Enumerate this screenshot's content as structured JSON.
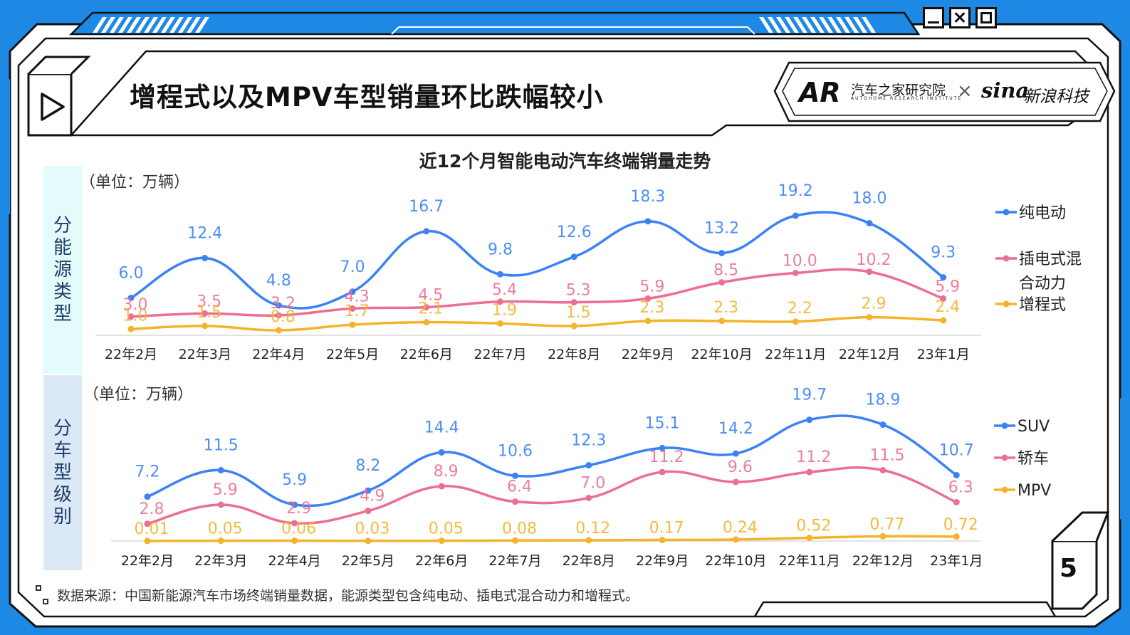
{
  "header": {
    "title": "增程式以及MPV车型销量环比跌幅较小",
    "logo_ar_cn": "汽车之家研究院",
    "logo_ar_en": "AUTOHOME RESEARCH INSTITUTE",
    "logo_ar_mark": "AR",
    "logo_cross": "×",
    "logo_sina": "sina",
    "logo_sina_cn": "新浪科技"
  },
  "window_controls": [
    "minimize-icon",
    "close-icon",
    "maximize-icon"
  ],
  "play_icon": "play-icon",
  "chart_title": "近12个月智能电动汽车终端销量走势",
  "unit_label": "（单位：万辆）",
  "side_label_top": "分能源类型",
  "side_label_bottom": "分车型级别",
  "source": "数据来源：中国新能源汽车市场终端销量数据，能源类型包含纯电动、插电式混合动力和增程式。",
  "page_number": "5",
  "colors": {
    "frame_blue": "#1e88e5",
    "blue": "#3b82f6",
    "pink": "#ec6f93",
    "orange": "#f5b32b",
    "side_top_bg": "#e4fbfb",
    "side_bottom_bg": "#dbe9f7"
  },
  "chart_data": [
    {
      "type": "line",
      "name": "分能源类型",
      "categories": [
        "22年2月",
        "22年3月",
        "22年4月",
        "22年5月",
        "22年6月",
        "22年7月",
        "22年8月",
        "22年9月",
        "22年10月",
        "22年11月",
        "22年12月",
        "23年1月"
      ],
      "series": [
        {
          "name": "纯电动",
          "values": [
            6.0,
            12.4,
            4.8,
            7.0,
            16.7,
            9.8,
            12.6,
            18.3,
            13.2,
            19.2,
            18.0,
            9.3
          ],
          "labels": [
            "6.0",
            "12.4",
            "4.8",
            "7.0",
            "16.7",
            "9.8",
            "12.6",
            "18.3",
            "13.2",
            "19.2",
            "18.0",
            "9.3"
          ]
        },
        {
          "name": "插电式混合动力",
          "values": [
            3.0,
            3.5,
            3.2,
            4.3,
            4.5,
            5.4,
            5.3,
            5.9,
            8.5,
            10.0,
            10.2,
            5.9
          ],
          "labels": [
            "3.0",
            "3.5",
            "3.2",
            "4.3",
            "4.5",
            "5.4",
            "5.3",
            "5.9",
            "8.5",
            "10.0",
            "10.2",
            "5.9"
          ]
        },
        {
          "name": "增程式",
          "values": [
            1.0,
            1.5,
            0.8,
            1.7,
            2.1,
            1.9,
            1.5,
            2.3,
            2.3,
            2.2,
            2.9,
            2.4
          ],
          "labels": [
            "1.0",
            "1.5",
            "0.8",
            "1.7",
            "2.1",
            "1.9",
            "1.5",
            "2.3",
            "2.3",
            "2.2",
            "2.9",
            "2.4"
          ]
        }
      ],
      "legend": [
        "纯电动",
        "插电式混",
        "合动力",
        "增程式"
      ],
      "legend_position": "right",
      "ylabel": "（单位：万辆）",
      "grid": false
    },
    {
      "type": "line",
      "name": "分车型级别",
      "categories": [
        "22年2月",
        "22年3月",
        "22年4月",
        "22年5月",
        "22年6月",
        "22年7月",
        "22年8月",
        "22年9月",
        "22年10月",
        "22年11月",
        "22年12月",
        "23年1月"
      ],
      "series": [
        {
          "name": "SUV",
          "values": [
            7.2,
            11.5,
            5.9,
            8.2,
            14.4,
            10.6,
            12.3,
            15.1,
            14.2,
            19.7,
            18.9,
            10.7
          ],
          "labels": [
            "7.2",
            "11.5",
            "5.9",
            "8.2",
            "14.4",
            "10.6",
            "12.3",
            "15.1",
            "14.2",
            "19.7",
            "18.9",
            "10.7"
          ]
        },
        {
          "name": "轿车",
          "values": [
            2.8,
            5.9,
            2.9,
            4.9,
            8.9,
            6.4,
            7.0,
            11.2,
            9.6,
            11.2,
            11.5,
            6.3
          ],
          "labels": [
            "2.8",
            "5.9",
            "2.9",
            "4.9",
            "8.9",
            "6.4",
            "7.0",
            "11.2",
            "9.6",
            "11.2",
            "11.5",
            "6.3"
          ]
        },
        {
          "name": "MPV",
          "values": [
            0.01,
            0.05,
            0.06,
            0.03,
            0.05,
            0.08,
            0.12,
            0.17,
            0.24,
            0.52,
            0.77,
            0.72
          ],
          "labels": [
            "0.01",
            "0.05",
            "0.06",
            "0.03",
            "0.05",
            "0.08",
            "0.12",
            "0.17",
            "0.24",
            "0.52",
            "0.77",
            "0.72"
          ]
        }
      ],
      "legend": [
        "SUV",
        "轿车",
        "MPV"
      ],
      "legend_position": "right",
      "ylabel": "（单位：万辆）",
      "grid": false
    }
  ]
}
